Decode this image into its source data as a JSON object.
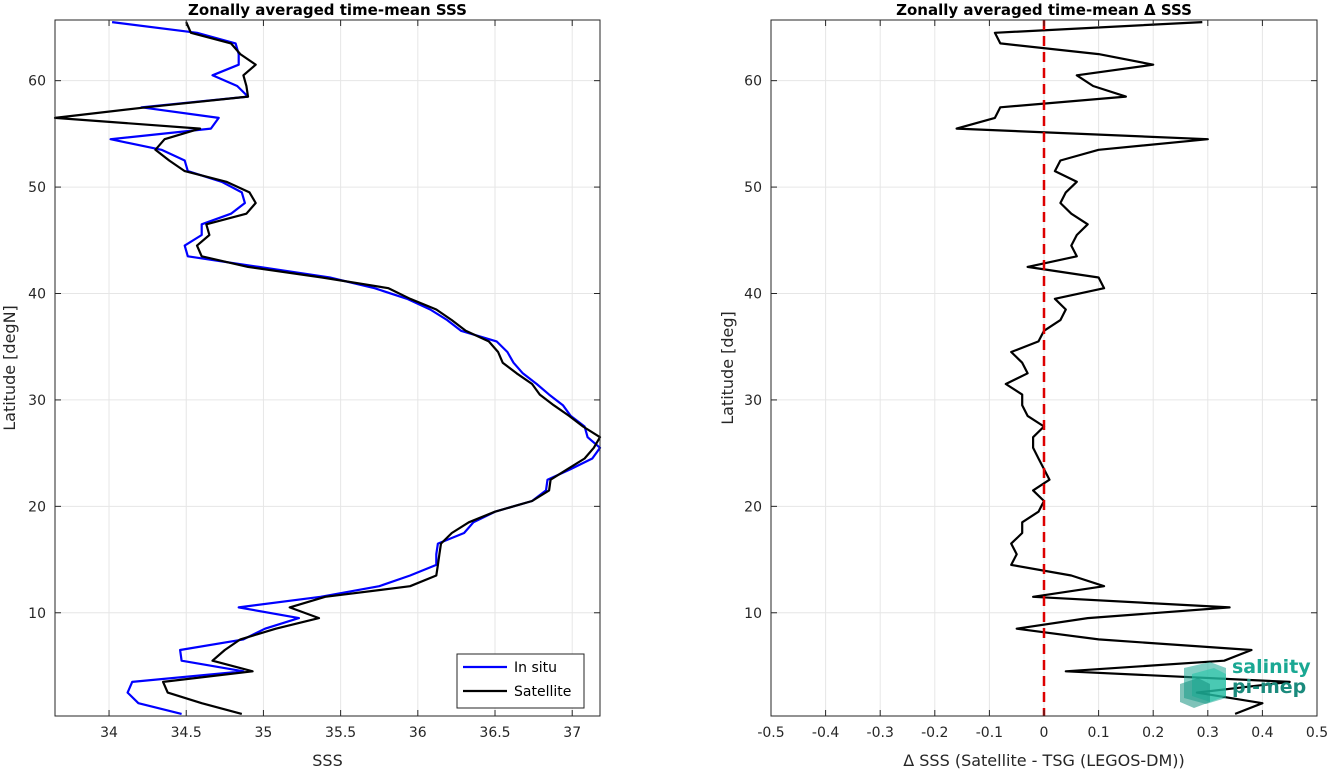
{
  "colors": {
    "in_situ": "#0000ff",
    "satellite": "#000000",
    "zero_line": "#dd0000",
    "grid": "#e6e6e6",
    "logo": "#1aa893"
  },
  "logo": {
    "line1": "salinity",
    "line2": "pi-mep"
  },
  "chart_data": [
    {
      "type": "line",
      "title": "Zonally averaged time-mean SSS",
      "xlabel": "SSS",
      "ylabel": "Latitude [degN]",
      "xlim": [
        33.65,
        37.18
      ],
      "ylim": [
        0.3,
        65.7
      ],
      "xticks": [
        34,
        34.5,
        35,
        35.5,
        36,
        36.5,
        37
      ],
      "xtick_labels": [
        "34",
        "34.5",
        "35",
        "35.5",
        "36",
        "36.5",
        "37"
      ],
      "yticks": [
        10,
        20,
        30,
        40,
        50,
        60
      ],
      "ytick_labels": [
        "10",
        "20",
        "30",
        "40",
        "50",
        "60"
      ],
      "grid": true,
      "legend_position": "bottom-right",
      "series": [
        {
          "name": "In situ",
          "color": "#0000ff",
          "points": [
            [
              34.47,
              0.5
            ],
            [
              34.19,
              1.5
            ],
            [
              34.12,
              2.5
            ],
            [
              34.15,
              3.5
            ],
            [
              34.87,
              4.5
            ],
            [
              34.47,
              5.5
            ],
            [
              34.46,
              6.5
            ],
            [
              34.87,
              7.5
            ],
            [
              35.01,
              8.5
            ],
            [
              35.23,
              9.5
            ],
            [
              34.84,
              10.5
            ],
            [
              35.37,
              11.5
            ],
            [
              35.75,
              12.5
            ],
            [
              35.95,
              13.5
            ],
            [
              36.12,
              14.5
            ],
            [
              36.12,
              15.5
            ],
            [
              36.13,
              16.5
            ],
            [
              36.3,
              17.5
            ],
            [
              36.36,
              18.5
            ],
            [
              36.5,
              19.5
            ],
            [
              36.74,
              20.5
            ],
            [
              36.83,
              21.5
            ],
            [
              36.84,
              22.5
            ],
            [
              36.99,
              23.5
            ],
            [
              37.13,
              24.5
            ],
            [
              37.18,
              25.5
            ],
            [
              37.1,
              26.5
            ],
            [
              37.08,
              27.5
            ],
            [
              36.99,
              28.5
            ],
            [
              36.94,
              29.5
            ],
            [
              36.85,
              30.5
            ],
            [
              36.77,
              31.5
            ],
            [
              36.68,
              32.5
            ],
            [
              36.62,
              33.5
            ],
            [
              36.58,
              34.5
            ],
            [
              36.51,
              35.5
            ],
            [
              36.28,
              36.5
            ],
            [
              36.19,
              37.5
            ],
            [
              36.08,
              38.5
            ],
            [
              35.93,
              39.5
            ],
            [
              35.72,
              40.5
            ],
            [
              35.43,
              41.5
            ],
            [
              34.97,
              42.5
            ],
            [
              34.51,
              43.5
            ],
            [
              34.49,
              44.5
            ],
            [
              34.6,
              45.5
            ],
            [
              34.6,
              46.5
            ],
            [
              34.79,
              47.5
            ],
            [
              34.88,
              48.5
            ],
            [
              34.86,
              49.5
            ],
            [
              34.73,
              50.5
            ],
            [
              34.51,
              51.5
            ],
            [
              34.49,
              52.5
            ],
            [
              34.34,
              53.5
            ],
            [
              34.01,
              54.5
            ],
            [
              34.66,
              55.5
            ],
            [
              34.71,
              56.5
            ],
            [
              34.21,
              57.5
            ],
            [
              34.9,
              58.5
            ],
            [
              34.83,
              59.5
            ],
            [
              34.67,
              60.5
            ],
            [
              34.84,
              61.5
            ],
            [
              34.84,
              62.5
            ],
            [
              34.82,
              63.5
            ],
            [
              34.57,
              64.5
            ],
            [
              34.02,
              65.5
            ]
          ]
        },
        {
          "name": "Satellite",
          "color": "#000000",
          "points": [
            [
              34.86,
              0.5
            ],
            [
              34.6,
              1.5
            ],
            [
              34.38,
              2.5
            ],
            [
              34.35,
              3.5
            ],
            [
              34.93,
              4.5
            ],
            [
              34.67,
              5.5
            ],
            [
              34.75,
              6.5
            ],
            [
              34.85,
              7.5
            ],
            [
              35.08,
              8.5
            ],
            [
              35.36,
              9.5
            ],
            [
              35.17,
              10.5
            ],
            [
              35.4,
              11.5
            ],
            [
              35.95,
              12.5
            ],
            [
              36.12,
              13.5
            ],
            [
              36.13,
              14.5
            ],
            [
              36.14,
              15.5
            ],
            [
              36.15,
              16.5
            ],
            [
              36.22,
              17.5
            ],
            [
              36.33,
              18.5
            ],
            [
              36.5,
              19.5
            ],
            [
              36.74,
              20.5
            ],
            [
              36.85,
              21.5
            ],
            [
              36.86,
              22.5
            ],
            [
              36.97,
              23.5
            ],
            [
              37.08,
              24.5
            ],
            [
              37.14,
              25.5
            ],
            [
              37.18,
              26.5
            ],
            [
              37.07,
              27.5
            ],
            [
              36.98,
              28.5
            ],
            [
              36.88,
              29.5
            ],
            [
              36.79,
              30.5
            ],
            [
              36.74,
              31.5
            ],
            [
              36.64,
              32.5
            ],
            [
              36.55,
              33.5
            ],
            [
              36.52,
              34.5
            ],
            [
              36.46,
              35.5
            ],
            [
              36.31,
              36.5
            ],
            [
              36.22,
              37.5
            ],
            [
              36.12,
              38.5
            ],
            [
              35.95,
              39.5
            ],
            [
              35.81,
              40.5
            ],
            [
              35.38,
              41.5
            ],
            [
              34.9,
              42.5
            ],
            [
              34.6,
              43.5
            ],
            [
              34.57,
              44.5
            ],
            [
              34.65,
              45.5
            ],
            [
              34.63,
              46.5
            ],
            [
              34.89,
              47.5
            ],
            [
              34.95,
              48.5
            ],
            [
              34.91,
              49.5
            ],
            [
              34.76,
              50.5
            ],
            [
              34.49,
              51.5
            ],
            [
              34.39,
              52.5
            ],
            [
              34.3,
              53.5
            ],
            [
              34.36,
              54.5
            ],
            [
              34.59,
              55.5
            ],
            [
              33.65,
              56.5
            ],
            [
              34.24,
              57.5
            ],
            [
              34.9,
              58.5
            ],
            [
              34.89,
              59.5
            ],
            [
              34.87,
              60.5
            ],
            [
              34.95,
              61.5
            ],
            [
              34.85,
              62.5
            ],
            [
              34.79,
              63.5
            ],
            [
              34.53,
              64.5
            ],
            [
              34.5,
              65.5
            ]
          ]
        }
      ]
    },
    {
      "type": "line",
      "title": "Zonally averaged time-mean Δ SSS",
      "xlabel": "Δ SSS (Satellite - TSG (LEGOS-DM))",
      "ylabel": "Latitude [deg]",
      "xlim": [
        -0.5,
        0.5
      ],
      "ylim": [
        0.3,
        65.7
      ],
      "xticks": [
        -0.5,
        -0.4,
        -0.3,
        -0.2,
        -0.1,
        0,
        0.1,
        0.2,
        0.3,
        0.4,
        0.5
      ],
      "xtick_labels": [
        "-0.5",
        "-0.4",
        "-0.3",
        "-0.2",
        "-0.1",
        "0",
        "0.1",
        "0.2",
        "0.3",
        "0.4",
        "0.5"
      ],
      "yticks": [
        10,
        20,
        30,
        40,
        50,
        60
      ],
      "ytick_labels": [
        "10",
        "20",
        "30",
        "40",
        "50",
        "60"
      ],
      "grid": true,
      "reference_line_x": 0,
      "series": [
        {
          "color": "#000000",
          "points": [
            [
              0.35,
              0.5
            ],
            [
              0.4,
              1.5
            ],
            [
              0.28,
              2.5
            ],
            [
              0.45,
              3.5
            ],
            [
              0.04,
              4.5
            ],
            [
              0.33,
              5.5
            ],
            [
              0.38,
              6.5
            ],
            [
              0.1,
              7.5
            ],
            [
              -0.05,
              8.5
            ],
            [
              0.08,
              9.5
            ],
            [
              0.34,
              10.5
            ],
            [
              -0.02,
              11.5
            ],
            [
              0.11,
              12.5
            ],
            [
              0.05,
              13.5
            ],
            [
              -0.06,
              14.5
            ],
            [
              -0.05,
              15.5
            ],
            [
              -0.06,
              16.5
            ],
            [
              -0.04,
              17.5
            ],
            [
              -0.04,
              18.5
            ],
            [
              -0.01,
              19.5
            ],
            [
              0.0,
              20.5
            ],
            [
              -0.02,
              21.5
            ],
            [
              0.01,
              22.5
            ],
            [
              0.0,
              23.5
            ],
            [
              -0.01,
              24.5
            ],
            [
              -0.02,
              25.5
            ],
            [
              -0.02,
              26.5
            ],
            [
              0.0,
              27.5
            ],
            [
              -0.03,
              28.5
            ],
            [
              -0.04,
              29.5
            ],
            [
              -0.04,
              30.5
            ],
            [
              -0.07,
              31.5
            ],
            [
              -0.03,
              32.5
            ],
            [
              -0.04,
              33.5
            ],
            [
              -0.06,
              34.5
            ],
            [
              -0.01,
              35.5
            ],
            [
              0.0,
              36.5
            ],
            [
              0.03,
              37.5
            ],
            [
              0.04,
              38.5
            ],
            [
              0.02,
              39.5
            ],
            [
              0.11,
              40.5
            ],
            [
              0.1,
              41.5
            ],
            [
              -0.03,
              42.5
            ],
            [
              0.06,
              43.5
            ],
            [
              0.05,
              44.5
            ],
            [
              0.06,
              45.5
            ],
            [
              0.08,
              46.5
            ],
            [
              0.05,
              47.5
            ],
            [
              0.03,
              48.5
            ],
            [
              0.04,
              49.5
            ],
            [
              0.06,
              50.5
            ],
            [
              0.02,
              51.5
            ],
            [
              0.03,
              52.5
            ],
            [
              0.1,
              53.5
            ],
            [
              0.3,
              54.5
            ],
            [
              -0.16,
              55.5
            ],
            [
              -0.09,
              56.5
            ],
            [
              -0.08,
              57.5
            ],
            [
              0.15,
              58.5
            ],
            [
              0.09,
              59.5
            ],
            [
              0.06,
              60.5
            ],
            [
              0.2,
              61.5
            ],
            [
              0.1,
              62.5
            ],
            [
              -0.08,
              63.5
            ],
            [
              -0.09,
              64.5
            ],
            [
              0.29,
              65.5
            ]
          ]
        }
      ]
    }
  ]
}
